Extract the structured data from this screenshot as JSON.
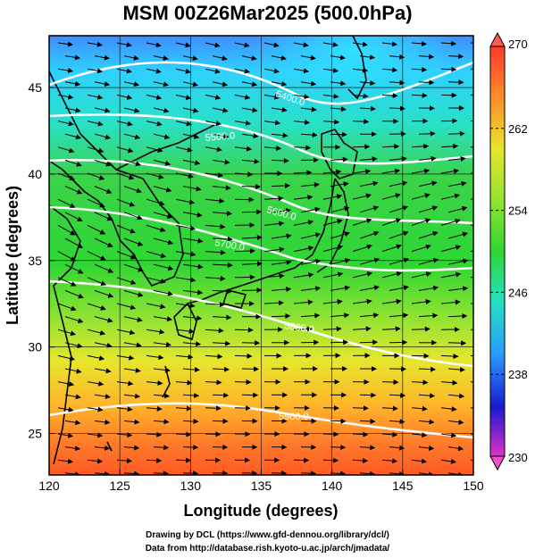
{
  "title": "MSM 00Z26Mar2025 (500.0hPa)",
  "xlabel": "Longitude (degrees)",
  "ylabel": "Latitude  (degrees)",
  "xticks": [
    "120",
    "125",
    "130",
    "135",
    "140",
    "145",
    "150"
  ],
  "yticks": [
    "25",
    "30",
    "35",
    "40",
    "45"
  ],
  "colorbar": {
    "ticks": [
      "270",
      "262",
      "254",
      "246",
      "238",
      "230"
    ],
    "min": 230,
    "max": 270
  },
  "contour_labels": [
    "5400.0",
    "5500.0",
    "5600.0",
    "5700.0",
    "5800.0",
    "5900.0"
  ],
  "credit_line1": "Drawing by DCL (https://www.gfd-dennou.org/library/dcl/)",
  "credit_line2": "Data from http://database.rish.kyoto-u.ac.jp/arch/jmadata/",
  "colors": {
    "frame": "#000000",
    "contour": "#ffffff",
    "vector": "#000000"
  }
}
